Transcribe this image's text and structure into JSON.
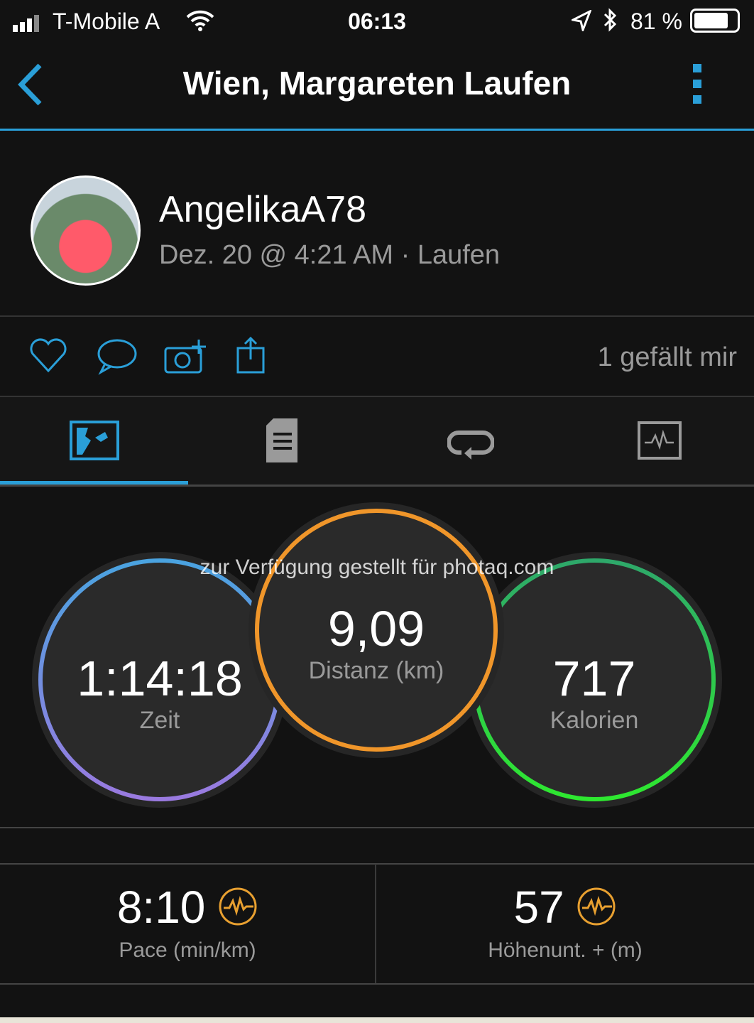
{
  "status_bar": {
    "carrier": "T-Mobile A",
    "time": "06:13",
    "battery": "81 %"
  },
  "nav": {
    "title": "Wien, Margareten Laufen",
    "back_icon": "chevron-left-icon",
    "menu_icon": "more-vertical-icon"
  },
  "profile": {
    "username": "AngelikaA78",
    "meta": "Dez. 20 @ 4:21 AM · Laufen"
  },
  "actions": {
    "likes": "1 gefällt mir",
    "icons": [
      "heart-icon",
      "comment-icon",
      "add-photo-icon",
      "share-icon"
    ]
  },
  "tabs": [
    {
      "icon": "map-icon",
      "active": true
    },
    {
      "icon": "details-icon"
    },
    {
      "icon": "laps-icon"
    },
    {
      "icon": "charts-icon"
    }
  ],
  "watermark": "zur Verfügung gestellt für photaq.com",
  "circles": [
    {
      "value": "1:14:18",
      "label": "Zeit",
      "color": "#4aa3e0"
    },
    {
      "value": "9,09",
      "label": "Distanz (km)",
      "color": "#f0962a"
    },
    {
      "value": "717",
      "label": "Kalorien",
      "color": "#2ed15a"
    }
  ],
  "stats": [
    {
      "value": "8:10",
      "label": "Pace (min/km)"
    },
    {
      "value": "57",
      "label": "Höhenunt. + (m)"
    }
  ],
  "colors": {
    "accent": "#2a9fd8",
    "badge": "#e8a030"
  }
}
